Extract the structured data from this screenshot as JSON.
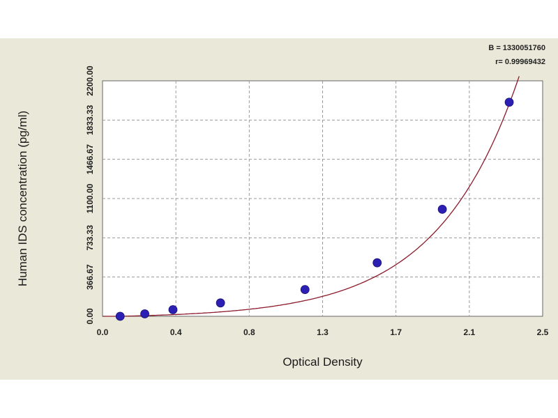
{
  "chart_data": {
    "type": "scatter",
    "xlabel": "Optical Density",
    "ylabel": "Human IDS concentration (pg/ml)",
    "x_ticks": [
      "0.0",
      "0.4",
      "0.8",
      "1.3",
      "1.7",
      "2.1",
      "2.5"
    ],
    "y_ticks": [
      "0.00",
      "366.67",
      "733.33",
      "1100.00",
      "1466.67",
      "1833.33",
      "2200.00"
    ],
    "xlim": [
      0.0,
      2.5
    ],
    "ylim": [
      0,
      2200
    ],
    "grid": true,
    "stats": [
      "B = 1330051760",
      "r= 0.99969432"
    ],
    "series": [
      {
        "points": [
          {
            "x": 0.1,
            "y": 0
          },
          {
            "x": 0.24,
            "y": 23
          },
          {
            "x": 0.4,
            "y": 62
          },
          {
            "x": 0.67,
            "y": 125
          },
          {
            "x": 1.15,
            "y": 250
          },
          {
            "x": 1.56,
            "y": 500
          },
          {
            "x": 1.93,
            "y": 1000
          },
          {
            "x": 2.31,
            "y": 2000
          }
        ]
      }
    ],
    "fit_curve": "exponential",
    "colors": {
      "points": "#2b1fb4",
      "curve": "#8b1a2a",
      "grid": "#9a9a9a",
      "plot_bg": "#ffffff",
      "panel_bg": "#eae8d8"
    }
  }
}
